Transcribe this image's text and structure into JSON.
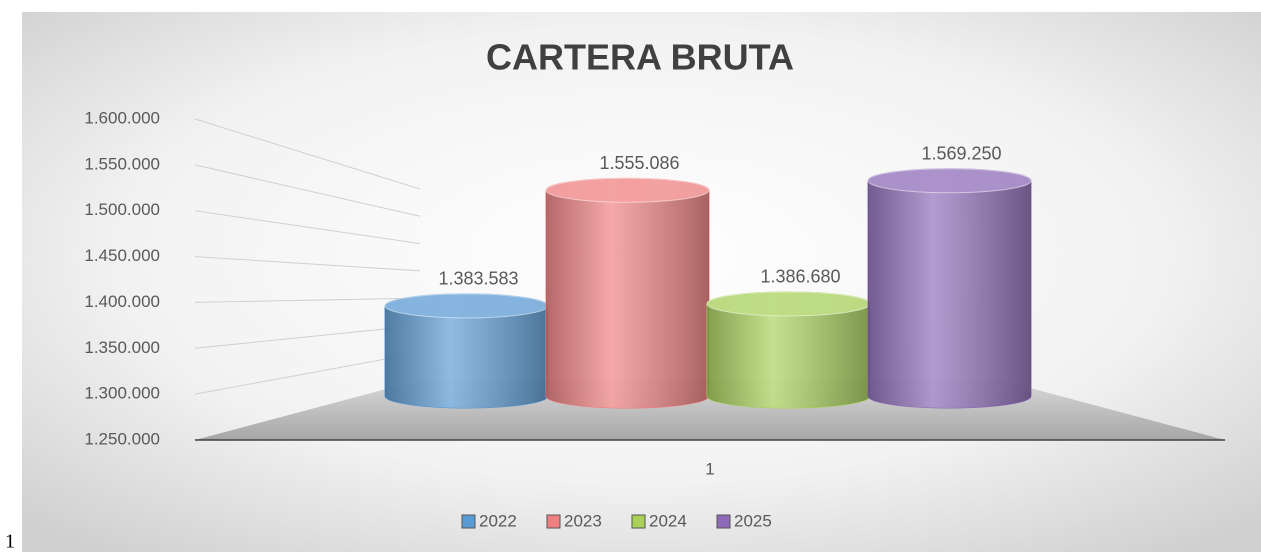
{
  "chart_data": {
    "type": "bar3d",
    "title": "CARTERA BRUTA",
    "categories": [
      "1"
    ],
    "series": [
      {
        "name": "2022",
        "color": "#5b9bd5",
        "values": [
          1383583
        ],
        "value_labels": [
          "1.383.583"
        ]
      },
      {
        "name": "2023",
        "color": "#f07f7f",
        "values": [
          1555086
        ],
        "value_labels": [
          "1.555.086"
        ]
      },
      {
        "name": "2024",
        "color": "#a9d15a",
        "values": [
          1386680
        ],
        "value_labels": [
          "1.386.680"
        ]
      },
      {
        "name": "2025",
        "color": "#8e6bb8",
        "values": [
          1569250
        ],
        "value_labels": [
          "1.569.250"
        ]
      }
    ],
    "ylim": [
      1250000,
      1600000
    ],
    "yticks": [
      {
        "value": 1250000,
        "label": "1.250.000"
      },
      {
        "value": 1300000,
        "label": "1.300.000"
      },
      {
        "value": 1350000,
        "label": "1.350.000"
      },
      {
        "value": 1400000,
        "label": "1.400.000"
      },
      {
        "value": 1450000,
        "label": "1.450.000"
      },
      {
        "value": 1500000,
        "label": "1.500.000"
      },
      {
        "value": 1550000,
        "label": "1.550.000"
      },
      {
        "value": 1600000,
        "label": "1.600.000"
      }
    ],
    "grid": true,
    "legend": "bottom"
  },
  "caption": "1"
}
